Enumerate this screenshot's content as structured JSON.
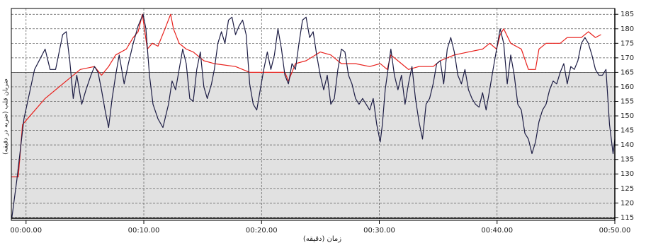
{
  "chart_data": {
    "type": "line",
    "x_label": "زمان (دقیقه)",
    "y_label": "ضربان قلب (ضربه در دقیقه)",
    "xlim": [
      -1.25,
      50
    ],
    "ylim": [
      114,
      187
    ],
    "xticks": [
      {
        "value": 0,
        "label": "00:00.00"
      },
      {
        "value": 10,
        "label": "00:10.00"
      },
      {
        "value": 20,
        "label": "00:20.00"
      },
      {
        "value": 30,
        "label": "00:30.00"
      },
      {
        "value": 40,
        "label": "00:40.00"
      },
      {
        "value": 50,
        "label": "00:50.00"
      }
    ],
    "yticks": [
      115,
      120,
      125,
      130,
      135,
      140,
      145,
      150,
      155,
      160,
      165,
      170,
      175,
      180,
      185
    ],
    "grid": true,
    "shaded_below": 165,
    "shade_color": "#e1e1e1",
    "series": [
      {
        "color": "#1c1c44",
        "x": [
          -1.2,
          -0.78,
          -0.18,
          0.72,
          1.62,
          2.04,
          2.51,
          3.11,
          3.41,
          3.71,
          4.01,
          4.31,
          4.73,
          5.09,
          5.51,
          5.81,
          6.11,
          6.41,
          6.71,
          7.01,
          7.31,
          7.61,
          7.91,
          8.33,
          8.69,
          9.1,
          9.52,
          9.94,
          10.18,
          10.48,
          10.78,
          11.2,
          11.62,
          12.1,
          12.4,
          12.7,
          13.0,
          13.3,
          13.6,
          13.9,
          14.2,
          14.5,
          14.8,
          15.1,
          15.39,
          15.75,
          15.99,
          16.29,
          16.59,
          16.89,
          17.19,
          17.49,
          17.79,
          18.09,
          18.39,
          18.69,
          18.99,
          19.29,
          19.59,
          19.89,
          20.19,
          20.49,
          20.79,
          21.09,
          21.39,
          21.69,
          21.98,
          22.28,
          22.58,
          22.88,
          23.18,
          23.48,
          23.78,
          24.08,
          24.38,
          24.68,
          24.98,
          25.28,
          25.58,
          25.88,
          26.18,
          26.48,
          26.78,
          27.08,
          27.38,
          27.68,
          27.98,
          28.28,
          28.58,
          28.88,
          29.18,
          29.48,
          29.78,
          30.08,
          30.26,
          30.5,
          30.74,
          30.98,
          31.28,
          31.58,
          31.88,
          32.18,
          32.47,
          32.77,
          33.07,
          33.37,
          33.67,
          33.97,
          34.27,
          34.57,
          34.87,
          35.17,
          35.47,
          35.77,
          36.07,
          36.37,
          36.67,
          36.97,
          37.27,
          37.57,
          37.87,
          38.17,
          38.47,
          38.77,
          39.07,
          39.37,
          39.66,
          39.96,
          40.26,
          40.56,
          40.86,
          41.16,
          41.46,
          41.76,
          42.06,
          42.36,
          42.66,
          42.96,
          43.26,
          43.56,
          43.86,
          44.16,
          44.46,
          44.76,
          45.06,
          45.36,
          45.66,
          45.96,
          46.26,
          46.56,
          46.86,
          47.16,
          47.46,
          47.75,
          48.05,
          48.35,
          48.65,
          48.95,
          49.25,
          49.55,
          49.85,
          50.0
        ],
        "values": [
          115,
          128,
          149,
          166,
          173,
          166,
          166,
          178,
          179,
          169,
          156,
          164,
          154,
          159,
          164,
          167,
          165,
          159,
          152,
          146,
          156,
          164,
          171,
          161,
          168,
          175,
          181,
          185,
          180,
          164,
          154,
          149,
          146,
          154,
          162,
          159,
          166,
          173,
          168,
          156,
          155,
          166,
          172,
          160,
          156,
          161,
          166,
          175,
          179,
          175,
          183,
          184,
          178,
          181,
          183,
          178,
          161,
          154,
          152,
          159,
          166,
          172,
          166,
          171,
          180,
          173,
          164,
          161,
          168,
          166,
          175,
          183,
          184,
          177,
          179,
          171,
          164,
          159,
          164,
          154,
          156,
          166,
          173,
          172,
          164,
          161,
          156,
          154,
          156,
          154,
          152,
          156,
          147,
          141,
          147,
          159,
          166,
          173,
          164,
          159,
          164,
          154,
          161,
          167,
          156,
          148,
          142,
          154,
          156,
          161,
          168,
          169,
          161,
          173,
          177,
          172,
          164,
          161,
          166,
          159,
          156,
          154,
          153,
          158,
          152,
          159,
          166,
          173,
          180,
          175,
          161,
          171,
          164,
          154,
          152,
          144,
          142,
          137,
          141,
          148,
          152,
          154,
          159,
          162,
          161,
          165,
          168,
          161,
          167,
          166,
          169,
          175,
          177,
          175,
          171,
          166,
          164,
          164,
          166,
          147,
          137,
          142
        ]
      },
      {
        "color": "#e8201c",
        "x": [
          -1.26,
          -0.66,
          -0.3,
          0.12,
          1.62,
          3.41,
          4.61,
          5.81,
          6.41,
          7.01,
          7.61,
          8.51,
          9.1,
          9.52,
          9.88,
          10.3,
          10.72,
          11.2,
          11.8,
          12.28,
          12.52,
          13.0,
          13.6,
          14.2,
          15.1,
          15.99,
          17.79,
          18.39,
          18.99,
          21.98,
          22.28,
          22.88,
          23.78,
          24.98,
          25.88,
          26.78,
          27.98,
          29.18,
          30.08,
          30.67,
          30.98,
          31.88,
          32.47,
          33.37,
          34.57,
          35.17,
          36.37,
          37.57,
          38.77,
          39.37,
          39.96,
          40.26,
          40.56,
          41.16,
          42.06,
          42.66,
          43.26,
          43.56,
          44.16,
          45.36,
          45.96,
          47.16,
          47.75,
          48.35,
          48.83
        ],
        "values": [
          129,
          129,
          147,
          149,
          156,
          162,
          166,
          167,
          164,
          167,
          171,
          173,
          177,
          179,
          185,
          173,
          175,
          174,
          180,
          185,
          180,
          175,
          173,
          172,
          169,
          168,
          167,
          166,
          165,
          165,
          162,
          168,
          169,
          172,
          171,
          168,
          168,
          167,
          168,
          166,
          171,
          168,
          166,
          167,
          167,
          169,
          171,
          172,
          173,
          175,
          173,
          178,
          180,
          175,
          173,
          166,
          166,
          173,
          175,
          175,
          177,
          177,
          179,
          177,
          178
        ]
      }
    ]
  }
}
